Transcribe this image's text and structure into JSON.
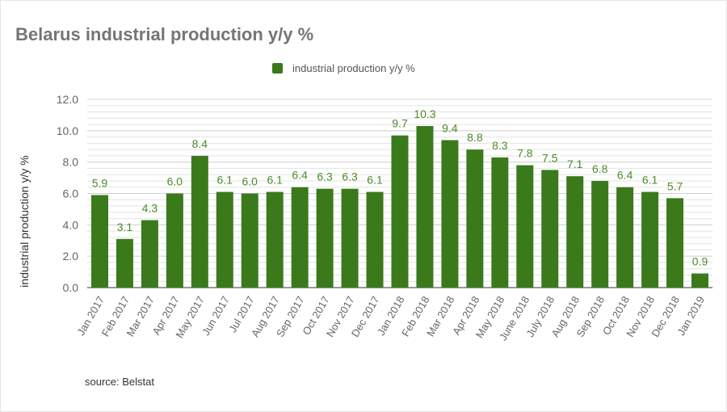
{
  "chart_data": {
    "type": "bar",
    "title": "Belarus industrial production y/y %",
    "legend": [
      "industrial production y/y %"
    ],
    "legend_placement": "top-center",
    "xlabel": "",
    "ylabel": "industrial production y/y %",
    "ylim": [
      0,
      12
    ],
    "yticks": [
      "0.0",
      "2.0",
      "4.0",
      "6.0",
      "8.0",
      "10.0",
      "12.0"
    ],
    "grid": true,
    "bar_color": "#3a7a1b",
    "label_color": "#4d8c2a",
    "categories": [
      "Jan 2017",
      "Feb 2017",
      "Mar 2017",
      "Apr 2017",
      "May 2017",
      "Jun 2017",
      "Jul 2017",
      "Aug 2017",
      "Sep 2017",
      "Oct 2017",
      "Nov 2017",
      "Dec 2017",
      "Jan 2018",
      "Feb 2018",
      "Mar 2018",
      "Apr 2018",
      "May 2018",
      "June 2018",
      "July 2018",
      "Aug 2018",
      "Sep 2018",
      "Oct 2018",
      "Nov 2018",
      "Dec 2018",
      "Jan 2019"
    ],
    "values": [
      5.9,
      3.1,
      4.3,
      6.0,
      8.4,
      6.1,
      6.0,
      6.1,
      6.4,
      6.3,
      6.3,
      6.1,
      9.7,
      10.3,
      9.4,
      8.8,
      8.3,
      7.8,
      7.5,
      7.1,
      6.8,
      6.4,
      6.1,
      5.7,
      0.9
    ],
    "source": "source: Belstat"
  }
}
